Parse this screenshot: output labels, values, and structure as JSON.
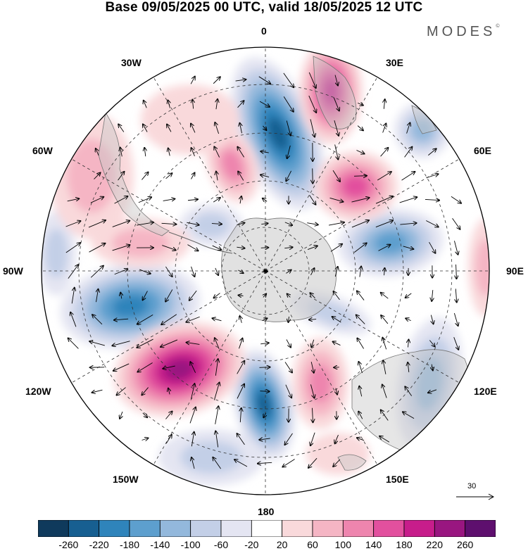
{
  "title": "Base 09/05/2025 00 UTC, valid 18/05/2025 12 UTC",
  "brand": {
    "name": "MODES",
    "mark": "©"
  },
  "map": {
    "projection": "south-polar-stereographic",
    "longitude_labels": {
      "lon_0": "0",
      "lon_30e": "30E",
      "lon_60e": "60E",
      "lon_90e": "90E",
      "lon_120e": "120E",
      "lon_150e": "150E",
      "lon_180": "180",
      "lon_150w": "150W",
      "lon_120w": "120W",
      "lon_90w": "90W",
      "lon_60w": "60W",
      "lon_30w": "30W"
    },
    "reference_vector": "30"
  },
  "colorbar": {
    "tick_labels": [
      "-260",
      "-220",
      "-180",
      "-140",
      "-100",
      "-60",
      "-20",
      "20",
      "60",
      "100",
      "140",
      "180",
      "220",
      "260"
    ],
    "colors": [
      "#0f3a5c",
      "#175f91",
      "#2f84bb",
      "#5d9fce",
      "#93b8dc",
      "#c3cfe7",
      "#e4e5f2",
      "#ffffff",
      "#f9d9db",
      "#f5b5c4",
      "#ee85ae",
      "#e2509e",
      "#c71d8b",
      "#991680",
      "#5e0f6e"
    ]
  }
}
